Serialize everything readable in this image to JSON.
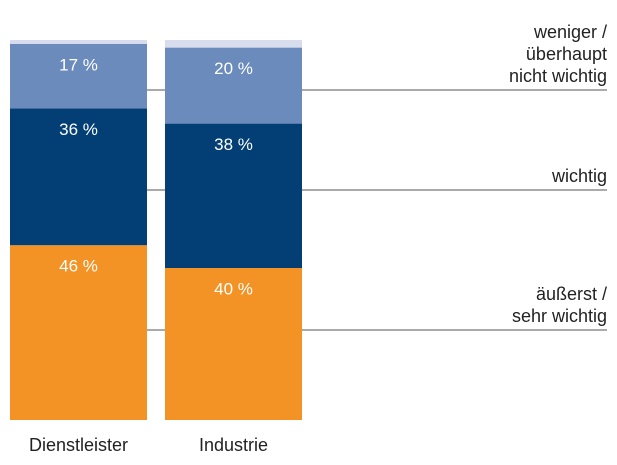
{
  "chart_data": {
    "type": "stacked_bar",
    "categories": [
      "Dienstleister",
      "Industrie"
    ],
    "ylim": [
      0,
      100
    ],
    "series": [
      {
        "name": "äußerst /\nsehr wichtig",
        "color": "#f39325",
        "values": [
          46,
          40
        ],
        "value_labels": [
          "46 %",
          "40 %"
        ]
      },
      {
        "name": "wichtig",
        "color": "#033f74",
        "values": [
          36,
          38
        ],
        "value_labels": [
          "36 %",
          "38 %"
        ]
      },
      {
        "name": "weniger /\nüberhaupt\nnicht wichtig",
        "color": "#6a8bbb",
        "values": [
          17,
          20
        ],
        "value_labels": [
          "17 %",
          "20 %"
        ]
      },
      {
        "color": "#d8dded",
        "values": [
          1,
          2
        ]
      }
    ]
  }
}
